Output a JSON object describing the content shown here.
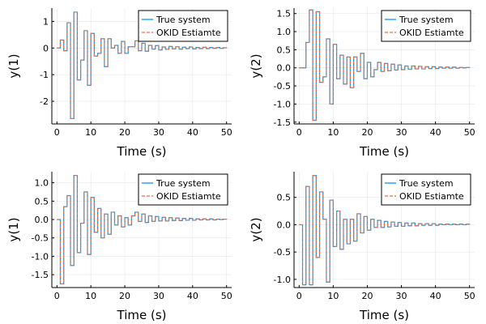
{
  "colors": {
    "true_system": "#009AFA",
    "okid_estimate": "#E36F47",
    "grid": "#e6e6e6",
    "axis": "#000000",
    "background": "#ffffff"
  },
  "legend": {
    "placement": "top-right",
    "entries": [
      "True system",
      "OKID Estiamte"
    ]
  },
  "chart_data": [
    {
      "type": "line",
      "step": true,
      "xlabel": "Time (s)",
      "ylabel": "y(1)",
      "xlim": [
        -1.5,
        51.5
      ],
      "ylim": [
        -2.85,
        1.5
      ],
      "xticks": [
        0,
        10,
        20,
        30,
        40,
        50
      ],
      "xticklabels": [
        "0",
        "10",
        "20",
        "30",
        "40",
        "50"
      ],
      "yticks": [
        1,
        0,
        -1,
        -2
      ],
      "yticklabels": [
        "1",
        "0",
        "-1",
        "-2"
      ],
      "grid": true,
      "x": [
        0,
        1,
        2,
        3,
        4,
        5,
        6,
        7,
        8,
        9,
        10,
        11,
        12,
        13,
        14,
        15,
        16,
        17,
        18,
        19,
        20,
        21,
        22,
        23,
        24,
        25,
        26,
        27,
        28,
        29,
        30,
        31,
        32,
        33,
        34,
        35,
        36,
        37,
        38,
        39,
        40,
        41,
        42,
        43,
        44,
        45,
        46,
        47,
        48,
        49,
        50
      ],
      "series": [
        {
          "name": "True system",
          "style": "solid",
          "values": [
            0,
            0.3,
            -0.1,
            0.95,
            -2.65,
            1.35,
            -1.2,
            -0.45,
            0.65,
            -1.4,
            0.55,
            -0.3,
            -0.2,
            0.35,
            -0.7,
            0.35,
            0,
            0.1,
            -0.2,
            0.25,
            -0.2,
            0.05,
            0.05,
            0.27,
            -0.1,
            0.18,
            -0.12,
            0.1,
            -0.04,
            0.09,
            -0.07,
            0.04,
            -0.05,
            0.06,
            -0.03,
            0.05,
            -0.04,
            0.03,
            -0.02,
            0.04,
            -0.03,
            0.02,
            -0.02,
            0.03,
            -0.02,
            0.02,
            -0.01,
            0.02,
            -0.01,
            0.01,
            0
          ]
        },
        {
          "name": "OKID Estiamte",
          "style": "dash",
          "values": [
            0,
            0.3,
            -0.1,
            0.95,
            -2.65,
            1.35,
            -1.2,
            -0.45,
            0.65,
            -1.4,
            0.55,
            -0.3,
            -0.2,
            0.35,
            -0.7,
            0.35,
            0,
            0.1,
            -0.2,
            0.25,
            -0.2,
            0.05,
            0.05,
            0.27,
            -0.1,
            0.18,
            -0.12,
            0.1,
            -0.04,
            0.09,
            -0.07,
            0.04,
            -0.05,
            0.06,
            -0.03,
            0.05,
            -0.04,
            0.03,
            -0.02,
            0.04,
            -0.03,
            0.02,
            -0.02,
            0.03,
            -0.02,
            0.02,
            -0.01,
            0.02,
            -0.01,
            0.01,
            0
          ]
        }
      ]
    },
    {
      "type": "line",
      "step": true,
      "xlabel": "Time (s)",
      "ylabel": "y(2)",
      "xlim": [
        -1.5,
        51.5
      ],
      "ylim": [
        -1.55,
        1.65
      ],
      "xticks": [
        0,
        10,
        20,
        30,
        40,
        50
      ],
      "xticklabels": [
        "0",
        "10",
        "20",
        "30",
        "40",
        "50"
      ],
      "yticks": [
        1.5,
        1.0,
        0.5,
        0.0,
        -0.5,
        -1.0,
        -1.5
      ],
      "yticklabels": [
        "1.5",
        "1.0",
        "0.5",
        "0.0",
        "-0.5",
        "-1.0",
        "-1.5"
      ],
      "grid": true,
      "x": [
        0,
        1,
        2,
        3,
        4,
        5,
        6,
        7,
        8,
        9,
        10,
        11,
        12,
        13,
        14,
        15,
        16,
        17,
        18,
        19,
        20,
        21,
        22,
        23,
        24,
        25,
        26,
        27,
        28,
        29,
        30,
        31,
        32,
        33,
        34,
        35,
        36,
        37,
        38,
        39,
        40,
        41,
        42,
        43,
        44,
        45,
        46,
        47,
        48,
        49,
        50
      ],
      "series": [
        {
          "name": "True system",
          "style": "solid",
          "values": [
            0,
            0,
            0.7,
            1.6,
            -1.45,
            1.55,
            -0.4,
            -0.25,
            0.8,
            -1.0,
            0.65,
            -0.3,
            0.35,
            -0.45,
            0.3,
            -0.55,
            0.3,
            -0.1,
            0.4,
            -0.3,
            0.15,
            -0.25,
            -0.05,
            0.15,
            -0.1,
            0.12,
            -0.08,
            0.1,
            -0.06,
            0.08,
            -0.05,
            0.05,
            -0.04,
            0.05,
            -0.03,
            0.04,
            -0.03,
            0.03,
            -0.02,
            0.03,
            -0.02,
            0.02,
            -0.01,
            0.02,
            -0.01,
            0.02,
            -0.01,
            0.01,
            0,
            0.01,
            0
          ]
        },
        {
          "name": "OKID Estiamte",
          "style": "dash",
          "values": [
            0,
            0,
            0.7,
            1.6,
            -1.45,
            1.55,
            -0.4,
            -0.25,
            0.8,
            -1.0,
            0.65,
            -0.3,
            0.35,
            -0.45,
            0.3,
            -0.55,
            0.3,
            -0.1,
            0.4,
            -0.3,
            0.15,
            -0.25,
            -0.05,
            0.15,
            -0.1,
            0.12,
            -0.08,
            0.1,
            -0.06,
            0.08,
            -0.05,
            0.05,
            -0.04,
            0.05,
            -0.03,
            0.04,
            -0.03,
            0.03,
            -0.02,
            0.03,
            -0.02,
            0.02,
            -0.01,
            0.02,
            -0.01,
            0.02,
            -0.01,
            0.01,
            0,
            0.01,
            0
          ]
        }
      ]
    },
    {
      "type": "line",
      "step": true,
      "xlabel": "Time (s)",
      "ylabel": "y(1)",
      "xlim": [
        -1.5,
        51.5
      ],
      "ylim": [
        -1.85,
        1.3
      ],
      "xticks": [
        0,
        10,
        20,
        30,
        40,
        50
      ],
      "xticklabels": [
        "0",
        "10",
        "20",
        "30",
        "40",
        "50"
      ],
      "yticks": [
        1.0,
        0.5,
        0.0,
        -0.5,
        -1.0,
        -1.5
      ],
      "yticklabels": [
        "1.0",
        "0.5",
        "0.0",
        "-0.5",
        "-1.0",
        "-1.5"
      ],
      "grid": true,
      "x": [
        0,
        1,
        2,
        3,
        4,
        5,
        6,
        7,
        8,
        9,
        10,
        11,
        12,
        13,
        14,
        15,
        16,
        17,
        18,
        19,
        20,
        21,
        22,
        23,
        24,
        25,
        26,
        27,
        28,
        29,
        30,
        31,
        32,
        33,
        34,
        35,
        36,
        37,
        38,
        39,
        40,
        41,
        42,
        43,
        44,
        45,
        46,
        47,
        48,
        49,
        50
      ],
      "series": [
        {
          "name": "True system",
          "style": "solid",
          "values": [
            0,
            -1.75,
            0.35,
            0.65,
            -1.25,
            1.2,
            -0.9,
            -0.1,
            0.75,
            -0.95,
            0.6,
            -0.35,
            0.3,
            -0.5,
            0.15,
            -0.4,
            0.2,
            -0.15,
            0.1,
            -0.2,
            0.05,
            -0.15,
            0.1,
            0.2,
            -0.05,
            0.15,
            -0.08,
            0.1,
            -0.05,
            0.08,
            -0.04,
            0.06,
            -0.04,
            0.05,
            -0.03,
            0.04,
            -0.03,
            0.03,
            -0.02,
            0.03,
            -0.02,
            0.02,
            -0.01,
            0.02,
            -0.01,
            0.02,
            -0.01,
            0.01,
            0,
            0.01,
            0
          ]
        },
        {
          "name": "OKID Estiamte",
          "style": "dash",
          "values": [
            0,
            -1.75,
            0.35,
            0.65,
            -1.25,
            1.2,
            -0.9,
            -0.1,
            0.75,
            -0.95,
            0.6,
            -0.35,
            0.3,
            -0.5,
            0.15,
            -0.4,
            0.2,
            -0.15,
            0.1,
            -0.2,
            0.05,
            -0.15,
            0.1,
            0.2,
            -0.05,
            0.15,
            -0.08,
            0.1,
            -0.05,
            0.08,
            -0.04,
            0.06,
            -0.04,
            0.05,
            -0.03,
            0.04,
            -0.03,
            0.03,
            -0.02,
            0.03,
            -0.02,
            0.02,
            -0.01,
            0.02,
            -0.01,
            0.02,
            -0.01,
            0.01,
            0,
            0.01,
            0
          ]
        }
      ]
    },
    {
      "type": "line",
      "step": true,
      "xlabel": "Time (s)",
      "ylabel": "y(2)",
      "xlim": [
        -1.5,
        51.5
      ],
      "ylim": [
        -1.15,
        0.97
      ],
      "xticks": [
        0,
        10,
        20,
        30,
        40,
        50
      ],
      "xticklabels": [
        "0",
        "10",
        "20",
        "30",
        "40",
        "50"
      ],
      "yticks": [
        0.5,
        0.0,
        -0.5,
        -1.0
      ],
      "yticklabels": [
        "0.5",
        "0.0",
        "-0.5",
        "-1.0"
      ],
      "grid": true,
      "x": [
        0,
        1,
        2,
        3,
        4,
        5,
        6,
        7,
        8,
        9,
        10,
        11,
        12,
        13,
        14,
        15,
        16,
        17,
        18,
        19,
        20,
        21,
        22,
        23,
        24,
        25,
        26,
        27,
        28,
        29,
        30,
        31,
        32,
        33,
        34,
        35,
        36,
        37,
        38,
        39,
        40,
        41,
        42,
        43,
        44,
        45,
        46,
        47,
        48,
        49,
        50
      ],
      "series": [
        {
          "name": "True system",
          "style": "solid",
          "values": [
            0,
            -1.1,
            0.7,
            -1.1,
            0.9,
            -0.6,
            0.6,
            0.1,
            -1.05,
            0.45,
            -0.4,
            0.25,
            -0.45,
            0.1,
            -0.35,
            0.1,
            -0.3,
            0.2,
            -0.15,
            0.15,
            -0.1,
            0.1,
            -0.05,
            0.08,
            -0.05,
            0.06,
            -0.04,
            0.05,
            -0.03,
            0.04,
            -0.03,
            0.03,
            -0.02,
            0.03,
            -0.02,
            0.02,
            -0.01,
            0.02,
            -0.01,
            0.02,
            -0.01,
            0.01,
            0,
            0.01,
            0,
            0.01,
            0,
            0.01,
            0,
            0.01,
            0
          ]
        },
        {
          "name": "OKID Estiamte",
          "style": "dash",
          "values": [
            0,
            -1.1,
            0.7,
            -1.1,
            0.9,
            -0.6,
            0.6,
            0.1,
            -1.05,
            0.45,
            -0.4,
            0.25,
            -0.45,
            0.1,
            -0.35,
            0.1,
            -0.3,
            0.2,
            -0.15,
            0.15,
            -0.1,
            0.1,
            -0.05,
            0.08,
            -0.05,
            0.06,
            -0.04,
            0.05,
            -0.03,
            0.04,
            -0.03,
            0.03,
            -0.02,
            0.03,
            -0.02,
            0.02,
            -0.01,
            0.02,
            -0.01,
            0.02,
            -0.01,
            0.01,
            0,
            0.01,
            0,
            0.01,
            0,
            0.01,
            0,
            0.01,
            0
          ]
        }
      ]
    }
  ]
}
